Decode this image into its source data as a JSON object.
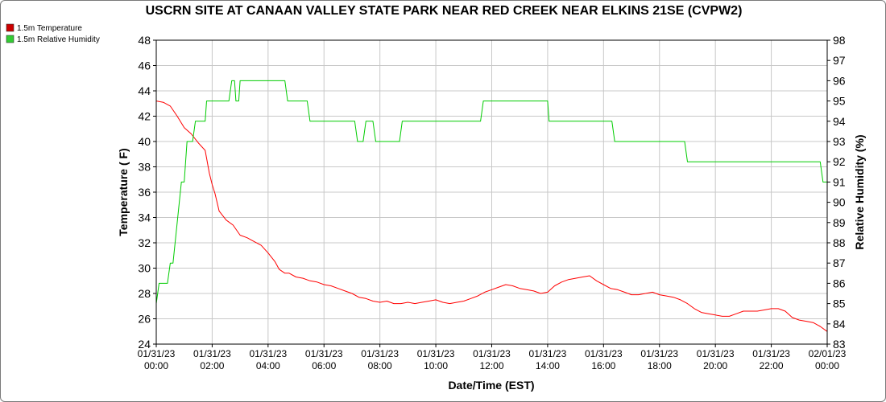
{
  "chart_data": {
    "type": "line",
    "title": "USCRN SITE AT CANAAN VALLEY STATE PARK NEAR RED CREEK NEAR ELKINS 21SE (CVPW2)",
    "xlabel": "Date/Time (EST)",
    "ylabel_left": "Temperature ( F)",
    "ylabel_right": "Relative Humidity (%)",
    "ylim_left": [
      24,
      48
    ],
    "ylim_right": [
      83,
      98
    ],
    "xlim_hours": [
      0,
      24
    ],
    "grid": true,
    "legend_position": "top-left",
    "y_ticks_left": [
      "24",
      "26",
      "28",
      "30",
      "32",
      "34",
      "36",
      "38",
      "40",
      "42",
      "44",
      "46",
      "48"
    ],
    "y_ticks_right": [
      "83",
      "84",
      "85",
      "86",
      "87",
      "88",
      "89",
      "90",
      "91",
      "92",
      "93",
      "94",
      "95",
      "96",
      "97",
      "98"
    ],
    "x_ticks": [
      {
        "date": "01/31/23",
        "time": "00:00"
      },
      {
        "date": "01/31/23",
        "time": "02:00"
      },
      {
        "date": "01/31/23",
        "time": "04:00"
      },
      {
        "date": "01/31/23",
        "time": "06:00"
      },
      {
        "date": "01/31/23",
        "time": "08:00"
      },
      {
        "date": "01/31/23",
        "time": "10:00"
      },
      {
        "date": "01/31/23",
        "time": "12:00"
      },
      {
        "date": "01/31/23",
        "time": "14:00"
      },
      {
        "date": "01/31/23",
        "time": "16:00"
      },
      {
        "date": "01/31/23",
        "time": "18:00"
      },
      {
        "date": "01/31/23",
        "time": "20:00"
      },
      {
        "date": "01/31/23",
        "time": "22:00"
      },
      {
        "date": "02/01/23",
        "time": "00:00"
      }
    ],
    "series": [
      {
        "name": "1.5m Temperature",
        "color": "#ff0000",
        "legend_color": "#cc0000",
        "axis": "left",
        "points": [
          [
            0.0,
            43.2
          ],
          [
            0.25,
            43.1
          ],
          [
            0.5,
            42.8
          ],
          [
            0.75,
            42.0
          ],
          [
            1.0,
            41.1
          ],
          [
            1.25,
            40.6
          ],
          [
            1.5,
            39.9
          ],
          [
            1.75,
            39.3
          ],
          [
            1.9,
            37.5
          ],
          [
            2.0,
            36.6
          ],
          [
            2.1,
            35.9
          ],
          [
            2.25,
            34.5
          ],
          [
            2.5,
            33.8
          ],
          [
            2.75,
            33.4
          ],
          [
            3.0,
            32.6
          ],
          [
            3.25,
            32.4
          ],
          [
            3.5,
            32.1
          ],
          [
            3.75,
            31.8
          ],
          [
            4.0,
            31.2
          ],
          [
            4.25,
            30.5
          ],
          [
            4.4,
            29.9
          ],
          [
            4.6,
            29.6
          ],
          [
            4.75,
            29.6
          ],
          [
            5.0,
            29.3
          ],
          [
            5.25,
            29.2
          ],
          [
            5.5,
            29.0
          ],
          [
            5.75,
            28.9
          ],
          [
            6.0,
            28.7
          ],
          [
            6.25,
            28.6
          ],
          [
            6.5,
            28.4
          ],
          [
            6.75,
            28.2
          ],
          [
            7.0,
            28.0
          ],
          [
            7.25,
            27.7
          ],
          [
            7.5,
            27.6
          ],
          [
            7.75,
            27.4
          ],
          [
            8.0,
            27.3
          ],
          [
            8.25,
            27.4
          ],
          [
            8.5,
            27.2
          ],
          [
            8.75,
            27.2
          ],
          [
            9.0,
            27.3
          ],
          [
            9.25,
            27.2
          ],
          [
            9.5,
            27.3
          ],
          [
            9.75,
            27.4
          ],
          [
            10.0,
            27.5
          ],
          [
            10.25,
            27.3
          ],
          [
            10.5,
            27.2
          ],
          [
            10.75,
            27.3
          ],
          [
            11.0,
            27.4
          ],
          [
            11.25,
            27.6
          ],
          [
            11.5,
            27.8
          ],
          [
            11.75,
            28.1
          ],
          [
            12.0,
            28.3
          ],
          [
            12.25,
            28.5
          ],
          [
            12.5,
            28.7
          ],
          [
            12.75,
            28.6
          ],
          [
            13.0,
            28.4
          ],
          [
            13.25,
            28.3
          ],
          [
            13.5,
            28.2
          ],
          [
            13.75,
            28.0
          ],
          [
            14.0,
            28.1
          ],
          [
            14.25,
            28.6
          ],
          [
            14.5,
            28.9
          ],
          [
            14.75,
            29.1
          ],
          [
            15.0,
            29.2
          ],
          [
            15.25,
            29.3
          ],
          [
            15.5,
            29.4
          ],
          [
            15.75,
            29.0
          ],
          [
            16.0,
            28.7
          ],
          [
            16.25,
            28.4
          ],
          [
            16.5,
            28.3
          ],
          [
            16.75,
            28.1
          ],
          [
            17.0,
            27.9
          ],
          [
            17.25,
            27.9
          ],
          [
            17.5,
            28.0
          ],
          [
            17.75,
            28.1
          ],
          [
            18.0,
            27.9
          ],
          [
            18.25,
            27.8
          ],
          [
            18.5,
            27.7
          ],
          [
            18.75,
            27.5
          ],
          [
            19.0,
            27.2
          ],
          [
            19.25,
            26.8
          ],
          [
            19.5,
            26.5
          ],
          [
            19.75,
            26.4
          ],
          [
            20.0,
            26.3
          ],
          [
            20.25,
            26.2
          ],
          [
            20.5,
            26.2
          ],
          [
            20.75,
            26.4
          ],
          [
            21.0,
            26.6
          ],
          [
            21.25,
            26.6
          ],
          [
            21.5,
            26.6
          ],
          [
            21.75,
            26.7
          ],
          [
            22.0,
            26.8
          ],
          [
            22.25,
            26.8
          ],
          [
            22.5,
            26.6
          ],
          [
            22.75,
            26.1
          ],
          [
            23.0,
            25.9
          ],
          [
            23.25,
            25.8
          ],
          [
            23.5,
            25.7
          ],
          [
            23.75,
            25.4
          ],
          [
            24.0,
            25.0
          ]
        ]
      },
      {
        "name": "1.5m Relative Humidity",
        "color": "#00cc00",
        "legend_color": "#33cc33",
        "axis": "right",
        "points": [
          [
            0.0,
            85.0
          ],
          [
            0.1,
            86.0
          ],
          [
            0.4,
            86.0
          ],
          [
            0.5,
            87.0
          ],
          [
            0.6,
            87.0
          ],
          [
            0.75,
            89.0
          ],
          [
            0.9,
            91.0
          ],
          [
            1.0,
            91.0
          ],
          [
            1.1,
            93.0
          ],
          [
            1.3,
            93.0
          ],
          [
            1.4,
            94.0
          ],
          [
            1.75,
            94.0
          ],
          [
            1.8,
            95.0
          ],
          [
            2.6,
            95.0
          ],
          [
            2.7,
            96.0
          ],
          [
            2.8,
            96.0
          ],
          [
            2.85,
            95.0
          ],
          [
            2.95,
            95.0
          ],
          [
            3.0,
            96.0
          ],
          [
            4.6,
            96.0
          ],
          [
            4.7,
            95.0
          ],
          [
            5.4,
            95.0
          ],
          [
            5.5,
            94.0
          ],
          [
            7.1,
            94.0
          ],
          [
            7.2,
            93.0
          ],
          [
            7.4,
            93.0
          ],
          [
            7.5,
            94.0
          ],
          [
            7.75,
            94.0
          ],
          [
            7.85,
            93.0
          ],
          [
            8.7,
            93.0
          ],
          [
            8.8,
            94.0
          ],
          [
            11.6,
            94.0
          ],
          [
            11.7,
            95.0
          ],
          [
            14.0,
            95.0
          ],
          [
            14.05,
            94.0
          ],
          [
            16.3,
            94.0
          ],
          [
            16.4,
            93.0
          ],
          [
            18.9,
            93.0
          ],
          [
            19.0,
            92.0
          ],
          [
            23.75,
            92.0
          ],
          [
            23.85,
            91.0
          ],
          [
            24.0,
            91.0
          ]
        ]
      }
    ]
  }
}
